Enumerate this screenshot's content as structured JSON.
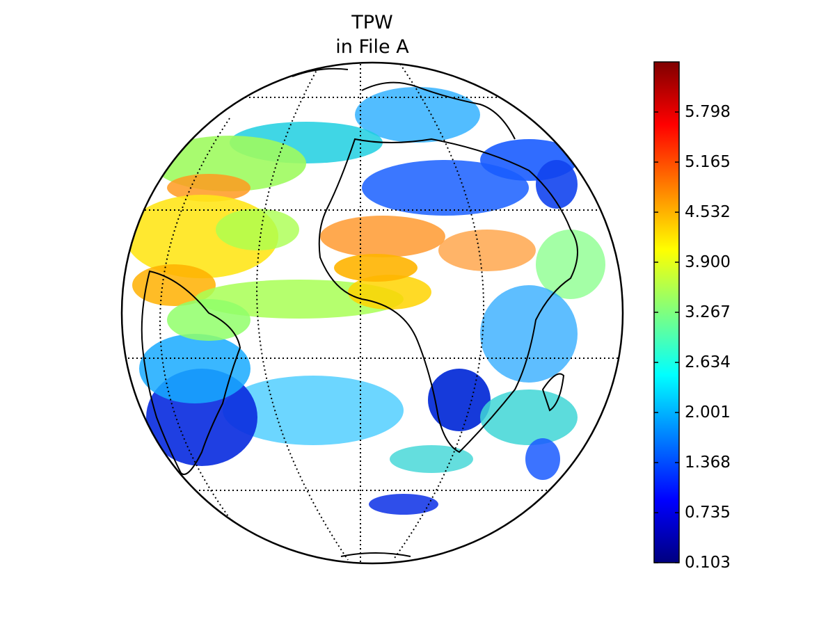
{
  "title": [
    "TPW",
    "in File A"
  ],
  "colorbar": {
    "min": 0.103,
    "max": 6.431,
    "tick_values": [
      0.103,
      0.735,
      1.368,
      2.001,
      2.634,
      3.267,
      3.9,
      4.532,
      5.165,
      5.798
    ],
    "tick_labels": [
      "0.103",
      "0.735",
      "1.368",
      "2.001",
      "2.634",
      "3.267",
      "3.900",
      "4.532",
      "5.165",
      "5.798"
    ],
    "colormap": "jet",
    "colormap_stops": [
      "#00007f",
      "#0000ff",
      "#007fff",
      "#00ffff",
      "#7fff7f",
      "#ffff00",
      "#ff7f00",
      "#ff0000",
      "#7f0000"
    ]
  },
  "map": {
    "projection": "orthographic",
    "graticule_style": "dotted",
    "coastline_color": "#000000",
    "background": "#ffffff"
  }
}
